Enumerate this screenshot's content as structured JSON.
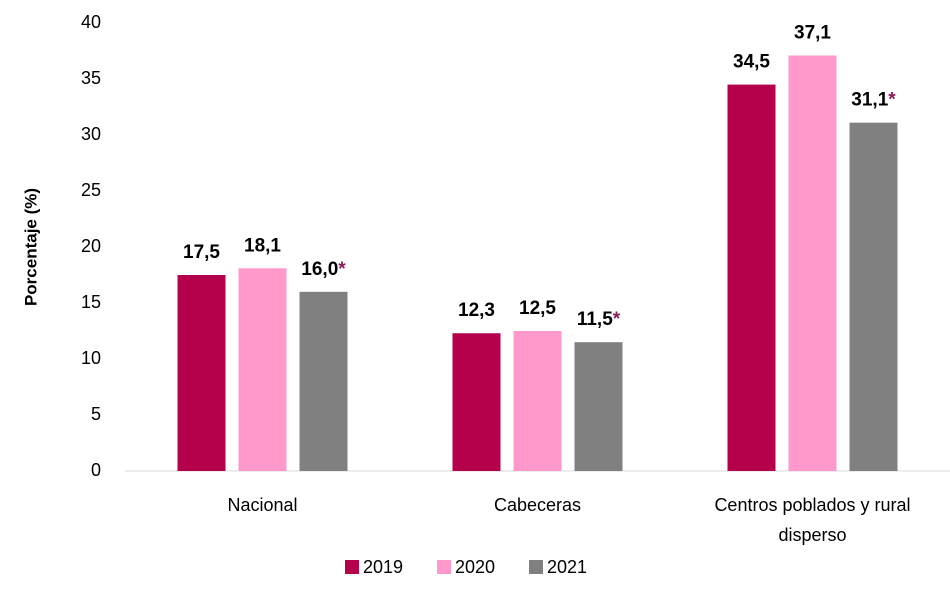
{
  "chart_data": {
    "type": "bar",
    "y_label": "Porcentaje (%)",
    "categories": [
      "Nacional",
      "Cabeceras",
      "Centros poblados y rural disperso"
    ],
    "series": [
      {
        "name": "2019",
        "color": "#b5004b",
        "values": [
          17.5,
          12.3,
          34.5
        ],
        "value_labels": [
          "17,5",
          "12,3",
          "34,5"
        ]
      },
      {
        "name": "2020",
        "color": "#ff99cc",
        "values": [
          18.1,
          12.5,
          37.1
        ],
        "value_labels": [
          "18,1",
          "12,5",
          "37,1"
        ]
      },
      {
        "name": "2021",
        "color": "#808080",
        "values": [
          16.0,
          11.5,
          31.1
        ],
        "value_labels": [
          "16,0",
          "11,5",
          "31,1"
        ],
        "annotation": "*",
        "annotation_color": "#8b1a5a"
      }
    ],
    "ylim": [
      0,
      40
    ],
    "yticks": [
      0,
      5,
      10,
      15,
      20,
      25,
      30,
      35,
      40
    ],
    "grid": false,
    "legend": "bottom"
  }
}
